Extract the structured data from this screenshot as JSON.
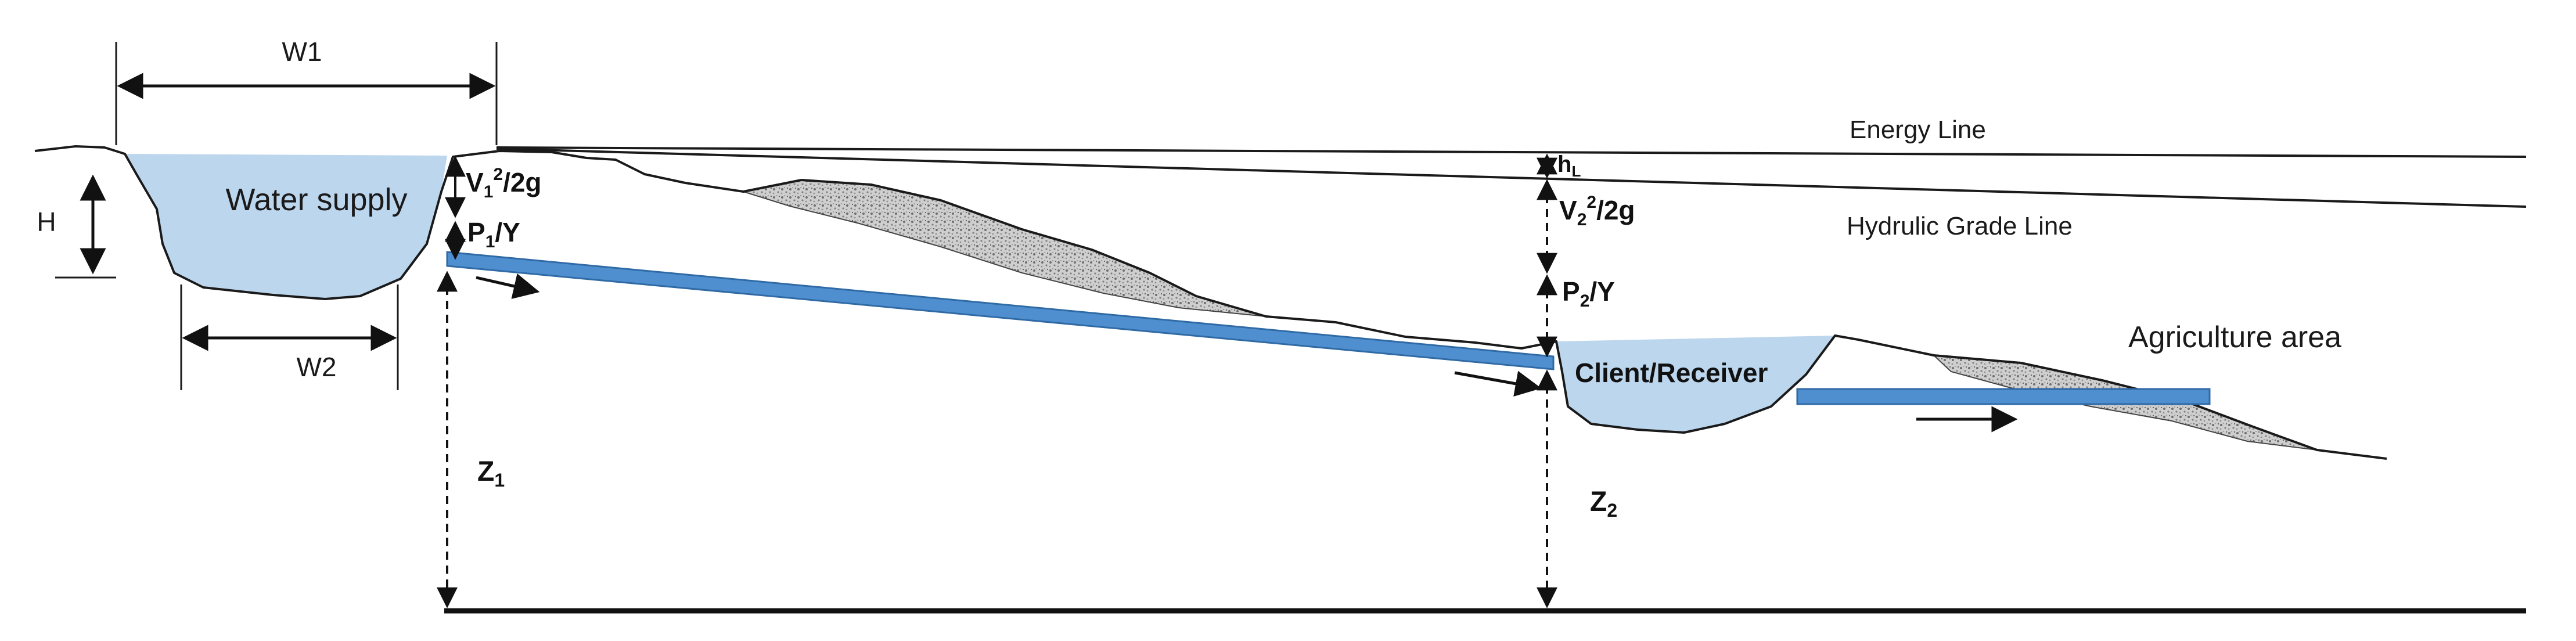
{
  "labels": {
    "w1": "W1",
    "w2": "W2",
    "h": "H",
    "water_supply": "Water supply",
    "energy_line": "Energy Line",
    "hgl": "Hydrulic Grade Line",
    "agri": "Agriculture area",
    "client": "Client/Receiver",
    "z1": "Z",
    "z1_sub": "1",
    "z2": "Z",
    "z2_sub": "2",
    "hl": "h",
    "hl_sub": "L",
    "v1_a": "V",
    "v1_sub": "1",
    "v1_sup": "2",
    "v1_b": "/2g",
    "p1_a": "P",
    "p1_sub": "1",
    "p1_b": "/Y",
    "v2_a": "V",
    "v2_sub": "2",
    "v2_sup": "2",
    "v2_b": "/2g",
    "p2_a": "P",
    "p2_sub": "2",
    "p2_b": "/Y"
  },
  "colors": {
    "water": "#bcd6ee",
    "pipe": "#4f8fd0",
    "pipe_edge": "#2f6aa5",
    "ink": "#1a1a1a",
    "rock": "#9a9a9a"
  }
}
